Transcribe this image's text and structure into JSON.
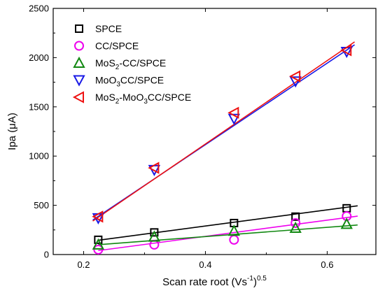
{
  "chart_data": {
    "type": "scatter",
    "xlabel": "Scan rate root (Vs⁻¹)⁰˙⁵",
    "xlabel_parts": {
      "base": "Scan rate root (Vs",
      "sup1": "-1",
      "mid": ")",
      "sup2": "0.5"
    },
    "ylabel": "Ipa (μA)",
    "ylabel_parts": {
      "base": "Ipa (",
      "mu": "μ",
      "tail": "A)"
    },
    "xlim": [
      0.15,
      0.68
    ],
    "ylim": [
      0,
      2500
    ],
    "x_ticks": [
      0.2,
      0.4,
      0.6
    ],
    "x_tick_labels": [
      "0.2",
      "0.4",
      "0.6"
    ],
    "y_ticks": [
      0,
      500,
      1000,
      1500,
      2000,
      2500
    ],
    "y_tick_labels": [
      "0",
      "500",
      "1000",
      "1500",
      "2000",
      "2500"
    ],
    "legend_position": "top-left",
    "grid": false,
    "x": [
      0.224,
      0.316,
      0.447,
      0.548,
      0.632
    ],
    "series": [
      {
        "name": "SPCE",
        "legend": {
          "main": "SPCE"
        },
        "marker": "square",
        "color": "#000000",
        "values": [
          150,
          225,
          320,
          385,
          470
        ],
        "fit": {
          "x": [
            0.224,
            0.65
          ],
          "y": [
            145,
            495
          ]
        }
      },
      {
        "name": "CC/SPCE",
        "legend": {
          "main": "CC/SPCE"
        },
        "marker": "circle",
        "color": "#ee00ee",
        "values": [
          50,
          100,
          150,
          320,
          390
        ],
        "fit": {
          "x": [
            0.224,
            0.65
          ],
          "y": [
            40,
            390
          ]
        }
      },
      {
        "name": "MoS2-CC/SPCE",
        "legend": {
          "main": "MoS",
          "sub": "2",
          "tail": "-CC/SPCE"
        },
        "marker": "triangle-up",
        "color": "#118811",
        "values": [
          100,
          180,
          240,
          270,
          310
        ],
        "fit": {
          "x": [
            0.224,
            0.65
          ],
          "y": [
            100,
            300
          ]
        }
      },
      {
        "name": "MoO3CC/SPCE",
        "legend": {
          "main": "MoO",
          "sub": "3",
          "tail": "CC/SPCE"
        },
        "marker": "triangle-down",
        "color": "#1a1ae6",
        "values": [
          370,
          860,
          1380,
          1760,
          2060
        ],
        "fit": {
          "x": [
            0.215,
            0.645
          ],
          "y": [
            350,
            2130
          ]
        }
      },
      {
        "name": "MoS2-MoO3CC/SPCE",
        "legend": {
          "main": "MoS",
          "sub": "2",
          "tail": "-MoO",
          "sub2": "3",
          "tail2": "CC/SPCE"
        },
        "marker": "triangle-left",
        "color": "#ee1111",
        "values": [
          385,
          880,
          1440,
          1810,
          2075
        ],
        "fit": {
          "x": [
            0.215,
            0.645
          ],
          "y": [
            340,
            2160
          ]
        }
      }
    ]
  }
}
